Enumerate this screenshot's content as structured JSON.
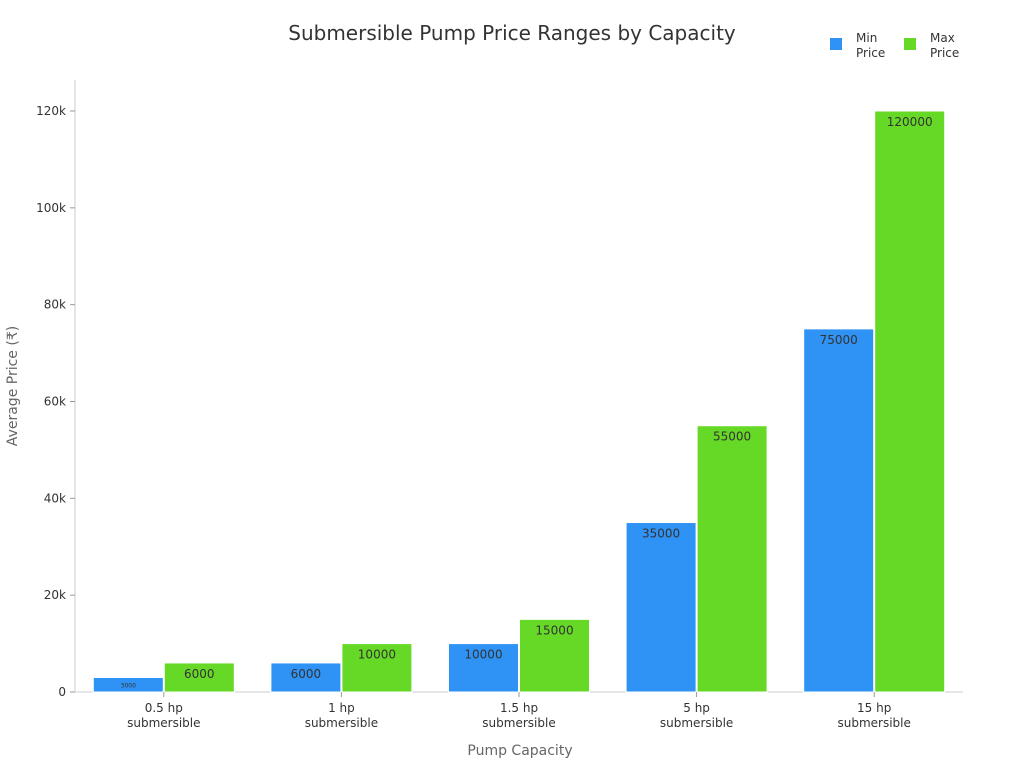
{
  "chart_data": {
    "type": "bar",
    "title": "Submersible Pump Price Ranges by Capacity",
    "xlabel": "Pump Capacity",
    "ylabel": "Average Price (₹)",
    "categories": [
      [
        "0.5 hp",
        "submersible"
      ],
      [
        "1 hp",
        "submersible"
      ],
      [
        "1.5 hp",
        "submersible"
      ],
      [
        "5 hp",
        "submersible"
      ],
      [
        "15 hp",
        "submersible"
      ]
    ],
    "series": [
      {
        "name": [
          "Min",
          "Price"
        ],
        "color": "#2f92f5",
        "values": [
          3000,
          6000,
          10000,
          35000,
          75000
        ]
      },
      {
        "name": [
          "Max",
          "Price"
        ],
        "color": "#66d926",
        "values": [
          6000,
          10000,
          15000,
          55000,
          120000
        ]
      }
    ],
    "ylim": [
      0,
      126000
    ],
    "yticks": [
      0,
      20000,
      40000,
      60000,
      80000,
      100000,
      120000
    ],
    "ytick_labels": [
      "0",
      "20k",
      "40k",
      "60k",
      "80k",
      "100k",
      "120k"
    ],
    "grid": false,
    "legend": "top-right"
  }
}
